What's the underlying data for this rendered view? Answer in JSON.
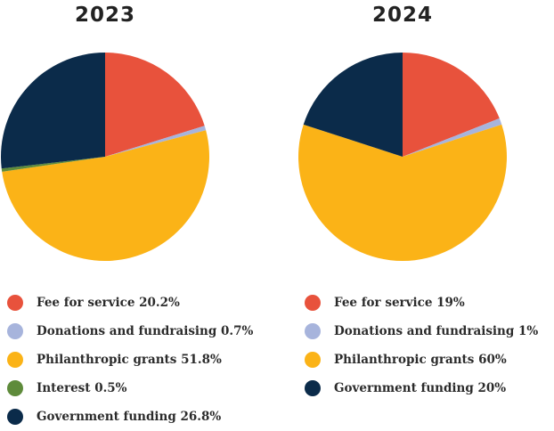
{
  "chart_data": [
    {
      "type": "pie",
      "title": "2023",
      "slices": [
        {
          "label": "Fee for service 20.2%",
          "value": 20.2,
          "color": "#e8523c"
        },
        {
          "label": "Donations and fundraising 0.7%",
          "value": 0.7,
          "color": "#a7b4dc"
        },
        {
          "label": "Philanthropic grants 51.8%",
          "value": 51.8,
          "color": "#fbb317"
        },
        {
          "label": "Interest 0.5%",
          "value": 0.5,
          "color": "#5e8b3b"
        },
        {
          "label": "Government funding 26.8%",
          "value": 26.8,
          "color": "#0b2b4a"
        }
      ]
    },
    {
      "type": "pie",
      "title": "2024",
      "slices": [
        {
          "label": "Fee for service 19%",
          "value": 19,
          "color": "#e8523c"
        },
        {
          "label": "Donations and fundraising 1%",
          "value": 1,
          "color": "#a7b4dc"
        },
        {
          "label": "Philanthropic grants 60%",
          "value": 60,
          "color": "#fbb317"
        },
        {
          "label": "Government funding 20%",
          "value": 20,
          "color": "#0b2b4a"
        }
      ]
    }
  ]
}
